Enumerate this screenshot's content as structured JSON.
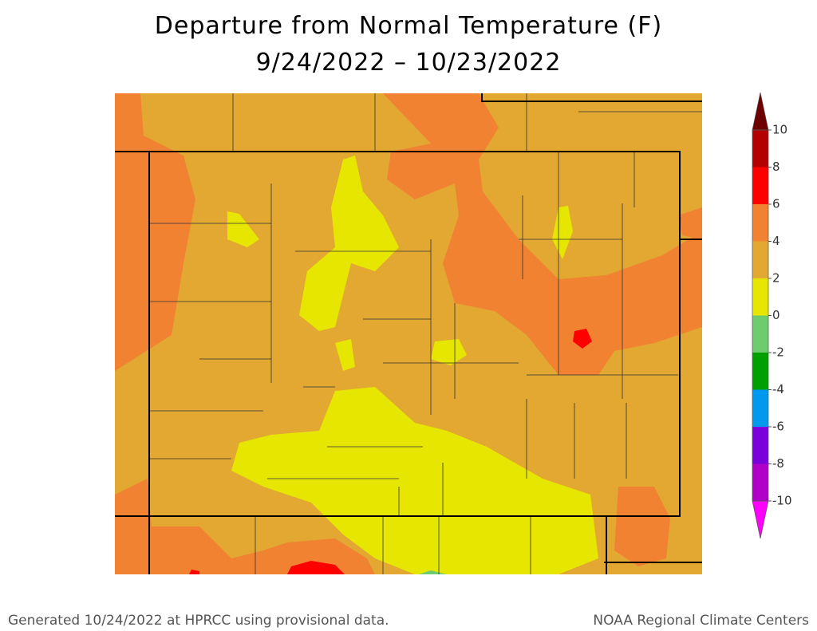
{
  "title": [
    "Departure from Normal Temperature (F)",
    "9/24/2022 – 10/23/2022"
  ],
  "colorbar": {
    "ticks": [
      10,
      8,
      6,
      4,
      2,
      0,
      -2,
      -4,
      -6,
      -8,
      -10
    ],
    "colors": [
      "#b40000",
      "#ff0000",
      "#f08232",
      "#e2a832",
      "#e6e600",
      "#6ecc6e",
      "#00a000",
      "#0099ee",
      "#7a00dc",
      "#b000c8"
    ],
    "over_color": "#6e0000",
    "under_color": "#ff00ff"
  },
  "footer": {
    "left": "Generated 10/24/2022 at HPRCC using provisional data.",
    "right": "NOAA Regional Climate Centers"
  }
}
